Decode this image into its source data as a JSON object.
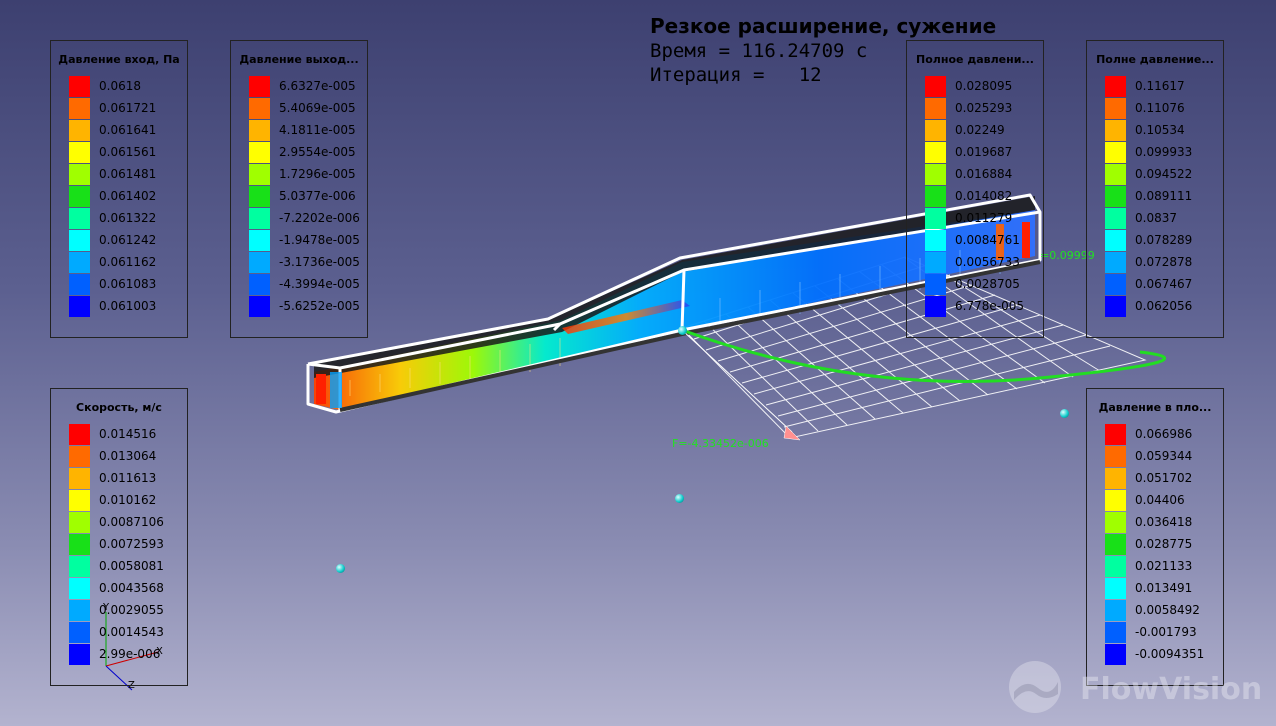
{
  "header": {
    "title": "Резкое расширение, сужение",
    "time_line": "Время = 116.24709 с",
    "iter_line": "Итерация =   12"
  },
  "legend_colors": [
    "#ff0000",
    "#ff6a00",
    "#ffb400",
    "#ffff00",
    "#a0ff00",
    "#18e018",
    "#00ffa0",
    "#00ffff",
    "#00aaff",
    "#0060ff",
    "#0000ff"
  ],
  "legends": {
    "inlet_pressure": {
      "title": "Давление вход, Па",
      "values": [
        "0.0618",
        "0.061721",
        "0.061641",
        "0.061561",
        "0.061481",
        "0.061402",
        "0.061322",
        "0.061242",
        "0.061162",
        "0.061083",
        "0.061003"
      ]
    },
    "outlet_pressure": {
      "title": "Давление выход...",
      "values": [
        "6.6327e-005",
        "5.4069e-005",
        "4.1811e-005",
        "2.9554e-005",
        "1.7296e-005",
        "5.0377e-006",
        "-7.2202e-006",
        "-1.9478e-005",
        "-3.1736e-005",
        "-4.3994e-005",
        "-5.6252e-005"
      ]
    },
    "total_pressure_1": {
      "title": "Полное давлени...",
      "values": [
        "0.028095",
        "0.025293",
        "0.02249",
        "0.019687",
        "0.016884",
        "0.014082",
        "0.011279",
        "0.0084761",
        "0.0056733",
        "0.0028705",
        "6.778e-005"
      ]
    },
    "total_pressure_2": {
      "title": "Полне давление...",
      "values": [
        "0.11617",
        "0.11076",
        "0.10534",
        "0.099933",
        "0.094522",
        "0.089111",
        "0.0837",
        "0.078289",
        "0.072878",
        "0.067467",
        "0.062056"
      ]
    },
    "velocity": {
      "title": "Скорость, м/с",
      "values": [
        "0.014516",
        "0.013064",
        "0.011613",
        "0.010162",
        "0.0087106",
        "0.0072593",
        "0.0058081",
        "0.0043568",
        "0.0029055",
        "0.0014543",
        "2.99e-006"
      ]
    },
    "plane_pressure": {
      "title": "Давление в пло...",
      "values": [
        "0.066986",
        "0.059344",
        "0.051702",
        "0.04406",
        "0.036418",
        "0.028775",
        "0.021133",
        "0.013491",
        "0.0058492",
        "-0.001793",
        "-0.0094351"
      ]
    }
  },
  "scene": {
    "force_label_1": "F=-4.33452e-006",
    "force_label_2": "=0.09999",
    "axis_x": "X",
    "axis_y": "Y",
    "axis_z": "Z"
  },
  "logo_text": "FlowVision"
}
